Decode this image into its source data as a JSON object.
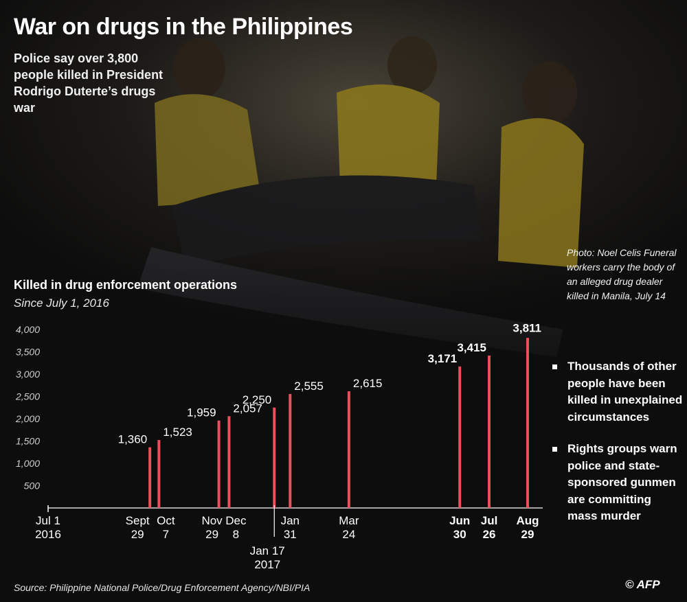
{
  "title": "War on drugs in the Philippines",
  "subtitle": "Police say over 3,800 people killed in President Rodrigo Duterte’s drugs war",
  "photo_caption": "Photo: Noel Celis Funeral workers carry the body of an alleged drug dealer killed in Manila, July 14",
  "notes": [
    "Thousands of other people have been killed in unexplained circumstances",
    "Rights groups warn police and state-sponsored gunmen are committing mass murder"
  ],
  "source": "Source: Philippine National Police/Drug Enforcement Agency/NBI/PIA",
  "credit": "© AFP",
  "colors": {
    "bar": "#e8505b",
    "background": "#0d0d0d",
    "text": "#ffffff"
  },
  "chart_data": {
    "type": "bar",
    "title": "Killed in drug enforcement operations",
    "subtitle": "Since July 1, 2016",
    "ylim": [
      0,
      4000
    ],
    "yticks": [
      500,
      1000,
      1500,
      2000,
      2500,
      3000,
      3500,
      4000
    ],
    "ytick_labels": [
      "500",
      "1,000",
      "1,500",
      "2,000",
      "2,500",
      "3,000",
      "3,500",
      "4,000"
    ],
    "x_start": {
      "date": "2016-07-01",
      "label": [
        "Jul 1",
        "2016"
      ]
    },
    "series": [
      {
        "values": [
          {
            "date": "2016-09-29",
            "value": 1360,
            "value_label": "1,360",
            "x_label": [
              "Sept",
              "29"
            ]
          },
          {
            "date": "2016-10-07",
            "value": 1523,
            "value_label": "1,523",
            "x_label": [
              "Oct",
              "7"
            ]
          },
          {
            "date": "2016-11-29",
            "value": 1959,
            "value_label": "1,959",
            "x_label": [
              "Nov",
              "29"
            ]
          },
          {
            "date": "2016-12-08",
            "value": 2057,
            "value_label": "2,057",
            "x_label": [
              "Dec",
              "8"
            ]
          },
          {
            "date": "2017-01-17",
            "value": 2250,
            "value_label": "2,250",
            "x_label": [
              "Jan 17",
              "2017"
            ]
          },
          {
            "date": "2017-01-31",
            "value": 2555,
            "value_label": "2,555",
            "x_label": [
              "Jan",
              "31"
            ]
          },
          {
            "date": "2017-03-24",
            "value": 2615,
            "value_label": "2,615",
            "x_label": [
              "Mar",
              "24"
            ]
          },
          {
            "date": "2017-06-30",
            "value": 3171,
            "value_label": "3,171",
            "x_label": [
              "Jun",
              "30"
            ]
          },
          {
            "date": "2017-07-26",
            "value": 3415,
            "value_label": "3,415",
            "x_label": [
              "Jul",
              "26"
            ]
          },
          {
            "date": "2017-08-29",
            "value": 3811,
            "value_label": "3,811",
            "x_label": [
              "Aug",
              "29"
            ]
          }
        ]
      }
    ]
  }
}
